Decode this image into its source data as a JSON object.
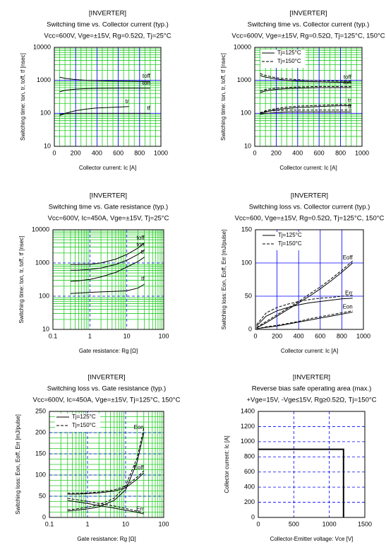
{
  "chart_data": [
    {
      "type": "line",
      "title": "[INVERTER]",
      "subtitle": "Switching time vs. Collector current  (typ.)",
      "conditions": "Vcc=600V, Vge=±15V, Rg=0.52Ω, Tj=25°C",
      "xlabel": "Collector current: Ic [A]",
      "ylabel": "Switching time: ton, tr, toff, tf [nsec]",
      "xlim": [
        0,
        1000
      ],
      "xticks": [
        0,
        200,
        400,
        600,
        800,
        1000
      ],
      "ylim": [
        10,
        10000
      ],
      "yticks": [
        10,
        100,
        1000,
        10000
      ],
      "ylog": true,
      "grid_color": "#0000ff",
      "grid_dash": false,
      "minor_grid": true,
      "minor_grid_color": "#22cc22",
      "series": [
        {
          "label": "toff",
          "dash": false,
          "color": "#000000",
          "x": [
            50,
            100,
            200,
            300,
            400,
            500,
            600,
            700,
            800,
            900
          ],
          "values": [
            1250,
            1150,
            1050,
            1000,
            980,
            960,
            950,
            940,
            930,
            930
          ]
        },
        {
          "label": "ton",
          "dash": false,
          "color": "#000000",
          "x": [
            50,
            100,
            200,
            300,
            400,
            500,
            600,
            700,
            800,
            900
          ],
          "values": [
            450,
            500,
            540,
            560,
            570,
            575,
            580,
            580,
            580,
            580
          ]
        },
        {
          "label": "tr",
          "dash": false,
          "color": "#000000",
          "x": [
            50,
            100,
            200,
            300,
            400,
            500,
            600,
            700
          ],
          "values": [
            85,
            100,
            120,
            135,
            145,
            150,
            155,
            160
          ]
        },
        {
          "label": "tf",
          "dash": false,
          "color": "#000000",
          "x": [
            50,
            100,
            200,
            300,
            400,
            500,
            600,
            700,
            800,
            900
          ],
          "values": [
            95,
            98,
            100,
            100,
            100,
            100,
            100,
            100,
            100,
            100
          ]
        }
      ]
    },
    {
      "type": "line",
      "title": "[INVERTER]",
      "subtitle": "Switching time vs. Collector current  (typ.)",
      "conditions": "Vcc=600V, Vge=±15V, Rg=0.52Ω, Tj=125°C, 150°C",
      "xlabel": "Collector current: Ic [A]",
      "ylabel": "Switching time: ton, tr, toff, tf [nsec]",
      "xlim": [
        0,
        1000
      ],
      "xticks": [
        0,
        200,
        400,
        600,
        800,
        1000
      ],
      "ylim": [
        10,
        10000
      ],
      "yticks": [
        10,
        100,
        1000,
        10000
      ],
      "ylog": true,
      "grid_color": "#0000ff",
      "grid_dash": false,
      "minor_grid": true,
      "minor_grid_color": "#22cc22",
      "legend": [
        {
          "name": "Tj=125°C",
          "dash": false
        },
        {
          "name": "Tj=150°C",
          "dash": true
        }
      ],
      "legend_loc": "upper left",
      "series": [
        {
          "label": "toff",
          "dash": false,
          "color": "#000000",
          "x": [
            50,
            100,
            200,
            300,
            400,
            500,
            600,
            700,
            800,
            900
          ],
          "values": [
            1400,
            1250,
            1100,
            1000,
            950,
            920,
            900,
            880,
            870,
            870
          ]
        },
        {
          "dash": true,
          "color": "#000000",
          "x": [
            50,
            100,
            200,
            300,
            400,
            500,
            600,
            700,
            800,
            900
          ],
          "values": [
            1600,
            1400,
            1200,
            1100,
            1050,
            1000,
            980,
            960,
            950,
            950
          ]
        },
        {
          "label": "ton",
          "dash": false,
          "color": "#000000",
          "x": [
            50,
            100,
            200,
            300,
            400,
            500,
            600,
            700,
            800,
            900
          ],
          "values": [
            420,
            480,
            530,
            560,
            580,
            590,
            600,
            600,
            600,
            600
          ]
        },
        {
          "dash": true,
          "color": "#000000",
          "x": [
            50,
            100,
            200,
            300,
            400,
            500,
            600,
            700,
            800,
            900
          ],
          "values": [
            470,
            530,
            580,
            610,
            630,
            640,
            650,
            650,
            650,
            650
          ]
        },
        {
          "label": "tr",
          "dash": false,
          "color": "#000000",
          "x": [
            50,
            100,
            200,
            300,
            400,
            500,
            600,
            700,
            800,
            900
          ],
          "values": [
            95,
            110,
            130,
            140,
            150,
            155,
            160,
            165,
            170,
            170
          ]
        },
        {
          "dash": true,
          "color": "#000000",
          "x": [
            50,
            100,
            200,
            300,
            400,
            500,
            600,
            700,
            800,
            900
          ],
          "values": [
            100,
            120,
            140,
            155,
            165,
            170,
            175,
            180,
            185,
            185
          ]
        },
        {
          "label": "tf",
          "dash": false,
          "color": "#000000",
          "x": [
            50,
            100,
            200,
            300,
            400,
            500,
            600,
            700,
            800,
            900
          ],
          "values": [
            95,
            100,
            105,
            110,
            110,
            110,
            110,
            110,
            110,
            110
          ]
        },
        {
          "dash": true,
          "color": "#000000",
          "x": [
            50,
            100,
            200,
            300,
            400,
            500,
            600,
            700,
            800,
            900
          ],
          "values": [
            105,
            115,
            120,
            125,
            125,
            125,
            125,
            125,
            125,
            125
          ]
        }
      ]
    },
    {
      "type": "line",
      "title": "[INVERTER]",
      "subtitle": "Switching time vs. Gate resistance (typ.)",
      "conditions": "Vcc=600V, Ic=450A, Vge=±15V, Tj=25°C",
      "xlabel": "Gate resistance: Rg [Ω]",
      "ylabel": "Switching time: ton, tr, toff, tf [nsec]",
      "xlim": [
        0.1,
        100
      ],
      "xticks": [
        0.1,
        1,
        10,
        100
      ],
      "xlog": true,
      "ylim": [
        10,
        10000
      ],
      "yticks": [
        10,
        100,
        1000,
        10000
      ],
      "ylog": true,
      "grid_color": "#0000ff",
      "grid_dash": true,
      "minor_grid": true,
      "minor_grid_color": "#22cc22",
      "series": [
        {
          "label": "toff",
          "dash": false,
          "color": "#000000",
          "x": [
            0.3,
            0.5,
            1,
            2,
            5,
            10,
            20,
            30
          ],
          "values": [
            900,
            900,
            920,
            1000,
            1300,
            1800,
            2800,
            4000
          ]
        },
        {
          "label": "ton",
          "dash": false,
          "color": "#000000",
          "x": [
            0.3,
            0.5,
            1,
            2,
            5,
            10,
            20,
            30
          ],
          "values": [
            600,
            610,
            640,
            700,
            900,
            1200,
            1800,
            2500
          ]
        },
        {
          "label": "tr",
          "dash": false,
          "color": "#000000",
          "x": [
            0.3,
            0.5,
            1,
            2,
            5,
            10,
            20,
            30
          ],
          "values": [
            280,
            290,
            320,
            380,
            520,
            750,
            1100,
            1500
          ]
        },
        {
          "label": "tf",
          "dash": false,
          "color": "#000000",
          "x": [
            0.3,
            0.5,
            1,
            2,
            5,
            10,
            20,
            30
          ],
          "values": [
            120,
            125,
            130,
            135,
            140,
            145,
            175,
            230
          ]
        }
      ]
    },
    {
      "type": "line",
      "title": "[INVERTER]",
      "subtitle": "Switching loss vs. Collector current (typ.)",
      "conditions": "Vcc=600, Vge=±15V, Rg=0.52Ω, Tj=125°C, 150°C",
      "xlabel": "Collector current: Ic [A]",
      "ylabel": "Switching loss: Eon, Eoff, Err [mJ/pulse]",
      "xlim": [
        0,
        1000
      ],
      "xticks": [
        0,
        200,
        400,
        600,
        800,
        1000
      ],
      "ylim": [
        0,
        150
      ],
      "yticks": [
        0,
        50,
        100,
        150
      ],
      "grid_color": "#0000ff",
      "grid_dash": false,
      "minor_grid": false,
      "legend": [
        {
          "name": "Tj=125°C",
          "dash": false
        },
        {
          "name": "Tj=150°C",
          "dash": true
        }
      ],
      "legend_loc": "upper left",
      "series": [
        {
          "label": "Eoff",
          "dash": false,
          "color": "#000000",
          "x": [
            10,
            100,
            200,
            300,
            400,
            500,
            600,
            700,
            800,
            900
          ],
          "values": [
            2,
            10,
            20,
            30,
            40,
            50,
            61,
            73,
            86,
            100
          ]
        },
        {
          "dash": true,
          "color": "#000000",
          "x": [
            10,
            100,
            200,
            300,
            400,
            500,
            600,
            700,
            800,
            900
          ],
          "values": [
            3,
            12,
            22,
            32,
            42,
            53,
            64,
            76,
            89,
            103
          ]
        },
        {
          "label": "Err",
          "dash": false,
          "color": "#000000",
          "x": [
            10,
            100,
            200,
            300,
            400,
            500,
            600,
            700,
            800,
            900
          ],
          "values": [
            5,
            20,
            28,
            33,
            37,
            40,
            42,
            44,
            46,
            47
          ]
        },
        {
          "dash": true,
          "color": "#000000",
          "x": [
            10,
            100,
            200,
            300,
            400,
            500,
            600,
            700,
            800,
            900
          ],
          "values": [
            7,
            25,
            33,
            38,
            42,
            45,
            47,
            48,
            50,
            51
          ]
        },
        {
          "label": "Eon",
          "dash": false,
          "color": "#000000",
          "x": [
            10,
            100,
            200,
            300,
            400,
            500,
            600,
            700,
            800,
            900
          ],
          "values": [
            1,
            3,
            5,
            8,
            11,
            14,
            17,
            20,
            23,
            26
          ]
        },
        {
          "dash": true,
          "color": "#000000",
          "x": [
            10,
            100,
            200,
            300,
            400,
            500,
            600,
            700,
            800,
            900
          ],
          "values": [
            1,
            4,
            6,
            9,
            12,
            16,
            19,
            22,
            25,
            28
          ]
        }
      ]
    },
    {
      "type": "line",
      "title": "[INVERTER]",
      "subtitle": "Switching loss  vs.  Gate resistance (typ.)",
      "conditions": "Vcc=600V, Ic=450A, Vge=±15V, Tj=125°C, 150°C",
      "xlabel": "Gate resistance: Rg [Ω]",
      "ylabel": "Switching loss: Eon, Eoff, Err [mJ/pulse]",
      "xlim": [
        0.1,
        100
      ],
      "xticks": [
        0.1,
        1,
        10,
        100
      ],
      "xlog": true,
      "ylim": [
        0,
        250
      ],
      "yticks": [
        0,
        50,
        100,
        150,
        200,
        250
      ],
      "grid_color": "#0000ff",
      "grid_dash": true,
      "minor_grid": true,
      "minor_grid_color": "#22cc22",
      "legend": [
        {
          "name": "Tj=125°C",
          "dash": false
        },
        {
          "name": "Tj=150°C",
          "dash": true
        }
      ],
      "legend_loc": "upper left",
      "series": [
        {
          "label": "Eon",
          "dash": false,
          "color": "#000000",
          "x": [
            0.3,
            0.5,
            1,
            2,
            5,
            10,
            20,
            30
          ],
          "values": [
            15,
            17,
            20,
            25,
            40,
            65,
            130,
            200
          ]
        },
        {
          "dash": true,
          "color": "#000000",
          "x": [
            0.3,
            0.5,
            1,
            2,
            5,
            10,
            20,
            30
          ],
          "values": [
            18,
            20,
            24,
            30,
            45,
            75,
            140,
            210
          ]
        },
        {
          "label": "Eoff",
          "dash": false,
          "color": "#000000",
          "x": [
            0.3,
            0.5,
            1,
            2,
            5,
            10,
            20,
            30
          ],
          "values": [
            55,
            55,
            56,
            58,
            62,
            70,
            90,
            105
          ]
        },
        {
          "dash": true,
          "color": "#000000",
          "x": [
            0.3,
            0.5,
            1,
            2,
            5,
            10,
            20,
            30
          ],
          "values": [
            57,
            57,
            58,
            60,
            65,
            74,
            95,
            110
          ]
        },
        {
          "label": "Err",
          "dash": false,
          "color": "#000000",
          "x": [
            0.3,
            0.5,
            1,
            2,
            5,
            10,
            20,
            30
          ],
          "values": [
            40,
            37,
            33,
            28,
            22,
            17,
            12,
            8
          ]
        },
        {
          "dash": true,
          "color": "#000000",
          "x": [
            0.3,
            0.5,
            1,
            2,
            5,
            10,
            20,
            30
          ],
          "values": [
            45,
            42,
            38,
            33,
            27,
            21,
            15,
            11
          ]
        }
      ]
    },
    {
      "type": "line",
      "title": "[INVERTER]",
      "subtitle": "Reverse bias safe operating area (max.)",
      "conditions": "+Vge=15V, -Vge≤15V, Rg≥0.52Ω, Tj=150°C",
      "xlabel": "Collector-Emitter voltage: Vce [V]",
      "ylabel": "Collector current: Ic [A]",
      "xlim": [
        0,
        1500
      ],
      "xticks": [
        0,
        500,
        1000,
        1500
      ],
      "ylim": [
        0,
        1400
      ],
      "yticks": [
        0,
        200,
        400,
        600,
        800,
        1000,
        1200,
        1400
      ],
      "grid_color": "#0000ff",
      "grid_dash": true,
      "minor_grid": false,
      "series": [
        {
          "dash": false,
          "color": "#000000",
          "width": 2,
          "x": [
            0,
            1200,
            1200
          ],
          "values": [
            900,
            900,
            0
          ]
        }
      ]
    }
  ]
}
